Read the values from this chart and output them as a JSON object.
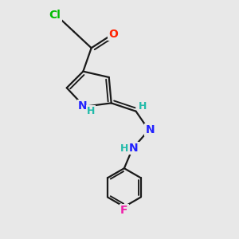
{
  "bg_color": "#e8e8e8",
  "bond_color": "#1a1a1a",
  "bond_width": 1.6,
  "atom_colors": {
    "Cl": "#00bb00",
    "O": "#ff2200",
    "N": "#2222ff",
    "F": "#ee22aa",
    "H": "#22bbaa",
    "C": "#1a1a1a"
  },
  "font_size": 10,
  "font_size_h": 9
}
